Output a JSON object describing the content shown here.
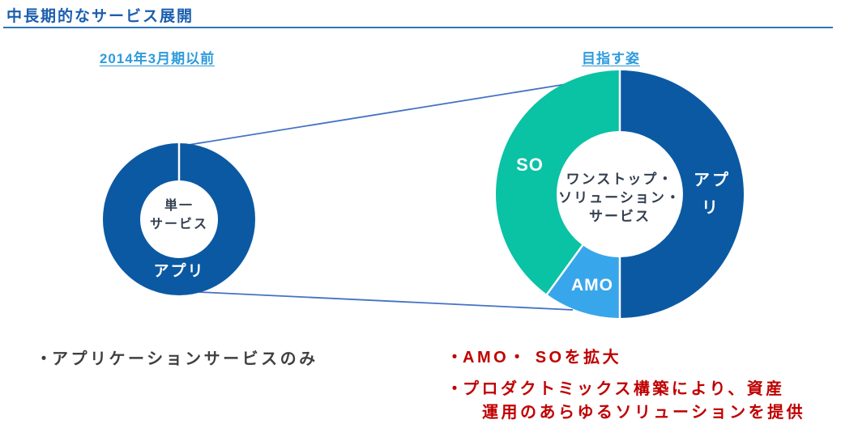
{
  "slide": {
    "title": "中長期的なサービス展開"
  },
  "before_chart": {
    "header": "2014年3月期以前",
    "center_line1": "単一",
    "center_line2": "サービス",
    "segment_label": "アプリ"
  },
  "target_chart": {
    "header": "目指す姿",
    "center_line1": "ワンストップ・",
    "center_line2": "ソリューション・",
    "center_line3": "サービス",
    "so_label": "SO",
    "amo_label": "AMO",
    "app_label_line1": "アプ",
    "app_label_line2": "リ"
  },
  "notes": {
    "before": {
      "marker": "・",
      "text": "アプリケーションサービスのみ"
    },
    "target": [
      {
        "marker": "・",
        "lines": [
          "AMO・ SOを拡大"
        ]
      },
      {
        "marker": "・",
        "lines": [
          "プロダクトミックス構築により、資産",
          "運用のあらゆるソリューションを提供"
        ]
      }
    ]
  },
  "colors": {
    "title_text": "#1B5EAE",
    "title_rule": "#2E75B6",
    "column_header": "#2E9BDB",
    "app_dark_blue": "#0B59A3",
    "so_teal": "#0AC2A4",
    "amo_light_blue": "#38A6EB",
    "connector_blue": "#4472C4",
    "note_red": "#C00000",
    "note_gray": "#3F3F3F",
    "donut_center_text": "#333F50"
  },
  "chart_data": [
    {
      "type": "pie",
      "variant": "donut",
      "title": "2014年3月期以前",
      "center_label": "単一サービス",
      "start_angle_deg": 0,
      "direction": "clockwise",
      "segments": [
        {
          "label": "アプリ",
          "value": 100,
          "color": "#0B59A3"
        }
      ]
    },
    {
      "type": "pie",
      "variant": "donut",
      "title": "目指す姿",
      "center_label": "ワンストップ・ソリューション・サービス",
      "start_angle_deg": 0,
      "direction": "clockwise",
      "segments": [
        {
          "label": "アプリ",
          "value": 50,
          "color": "#0B59A3"
        },
        {
          "label": "AMO",
          "value": 10,
          "color": "#38A6EB"
        },
        {
          "label": "SO",
          "value": 40,
          "color": "#0AC2A4"
        }
      ]
    }
  ]
}
